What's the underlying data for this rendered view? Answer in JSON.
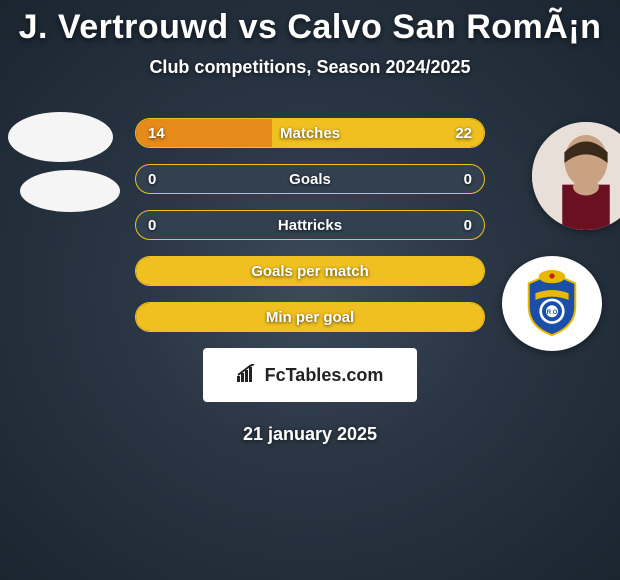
{
  "title": "J. Vertrouwd vs Calvo San RomÃ¡n",
  "subtitle": "Club competitions, Season 2024/2025",
  "date": "21 january 2025",
  "watermark": "FcTables.com",
  "colors": {
    "border_yellow": "#f0c020",
    "fill_yellow": "#f0c020",
    "fill_orange": "#e88a1a",
    "bg_dark": "#324050"
  },
  "stats": [
    {
      "label": "Matches",
      "left_val": "14",
      "right_val": "22",
      "left_pct": 39,
      "right_pct": 61,
      "left_color": "#e88a1a",
      "right_color": "#f0c020"
    },
    {
      "label": "Goals",
      "left_val": "0",
      "right_val": "0",
      "left_pct": 0,
      "right_pct": 0,
      "left_color": "#e88a1a",
      "right_color": "#f0c020"
    },
    {
      "label": "Hattricks",
      "left_val": "0",
      "right_val": "0",
      "left_pct": 0,
      "right_pct": 0,
      "left_color": "#e88a1a",
      "right_color": "#f0c020"
    },
    {
      "label": "Goals per match",
      "left_val": "",
      "right_val": "",
      "left_pct": 100,
      "right_pct": 0,
      "left_color": "#f0c020",
      "right_color": "#f0c020"
    },
    {
      "label": "Min per goal",
      "left_val": "",
      "right_val": "",
      "left_pct": 100,
      "right_pct": 0,
      "left_color": "#f0c020",
      "right_color": "#f0c020"
    }
  ]
}
